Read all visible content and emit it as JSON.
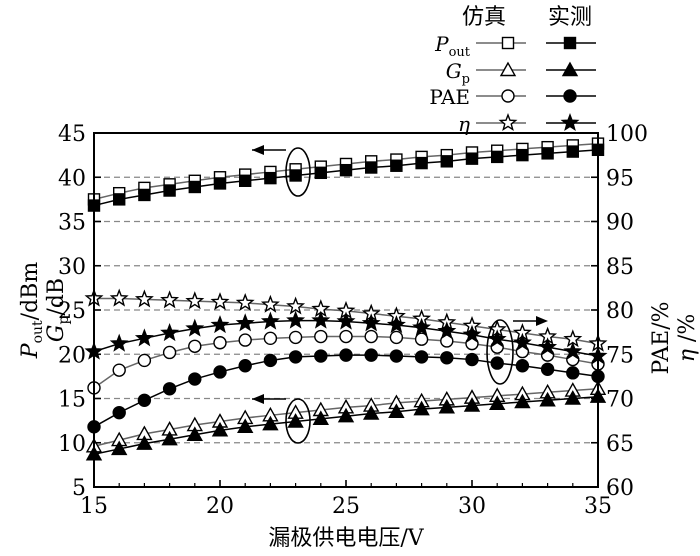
{
  "chart_data": {
    "type": "line",
    "x": [
      15,
      16,
      17,
      18,
      19,
      20,
      21,
      22,
      23,
      24,
      25,
      26,
      27,
      28,
      29,
      30,
      31,
      32,
      33,
      34,
      35
    ],
    "xlabel": "漏极供电电压/V",
    "xlim": [
      15,
      35
    ],
    "xticks": [
      "15",
      "20",
      "25",
      "30",
      "35"
    ],
    "ylabel_left": [
      "P_out/dBm",
      "G_p/dB"
    ],
    "ylim_left": [
      5,
      45
    ],
    "yticks_left": [
      "5",
      "10",
      "15",
      "20",
      "25",
      "30",
      "35",
      "40",
      "45"
    ],
    "ylabel_right": [
      "PAE/%",
      "η/%"
    ],
    "ylim_right": [
      60,
      100
    ],
    "yticks_right": [
      "60",
      "65",
      "70",
      "75",
      "80",
      "85",
      "90",
      "95",
      "100"
    ],
    "grid": "horizontal dashed",
    "legend_position": "top-right",
    "legend_headers": [
      "仿真",
      "实测"
    ],
    "legend_rows": [
      {
        "label": "P",
        "sub": "out",
        "italic": true
      },
      {
        "label": "G",
        "sub": "p",
        "italic": true
      },
      {
        "label": "PAE",
        "sub": "",
        "italic": false
      },
      {
        "label": "η",
        "sub": "",
        "italic": true
      }
    ],
    "series": [
      {
        "name": "P_out 仿真",
        "axis": "left",
        "marker": "square-open",
        "values": [
          37.5,
          38.2,
          38.8,
          39.2,
          39.6,
          40.0,
          40.3,
          40.6,
          40.9,
          41.2,
          41.5,
          41.8,
          42.0,
          42.3,
          42.5,
          42.8,
          43.0,
          43.2,
          43.4,
          43.6,
          43.8
        ]
      },
      {
        "name": "P_out 实测",
        "axis": "left",
        "marker": "square-filled",
        "values": [
          36.8,
          37.5,
          38.0,
          38.5,
          38.9,
          39.3,
          39.6,
          39.9,
          40.2,
          40.5,
          40.8,
          41.1,
          41.3,
          41.6,
          41.8,
          42.1,
          42.3,
          42.5,
          42.7,
          42.9,
          43.1
        ]
      },
      {
        "name": "G_p 仿真",
        "axis": "left",
        "marker": "triangle-open",
        "values": [
          9.6,
          10.3,
          11.0,
          11.5,
          12.0,
          12.4,
          12.8,
          13.1,
          13.4,
          13.7,
          14.0,
          14.2,
          14.5,
          14.7,
          14.9,
          15.1,
          15.3,
          15.5,
          15.7,
          15.9,
          16.1
        ]
      },
      {
        "name": "G_p 实测",
        "axis": "left",
        "marker": "triangle-filled",
        "values": [
          8.7,
          9.3,
          9.9,
          10.4,
          10.9,
          11.4,
          11.8,
          12.1,
          12.4,
          12.7,
          13.0,
          13.3,
          13.5,
          13.8,
          14.0,
          14.2,
          14.4,
          14.6,
          14.8,
          15.0,
          15.2
        ]
      },
      {
        "name": "PAE 仿真",
        "axis": "right",
        "marker": "circle-open",
        "values": [
          71.2,
          73.2,
          74.3,
          75.2,
          75.9,
          76.3,
          76.6,
          76.8,
          76.9,
          77.0,
          77.0,
          77.0,
          76.9,
          76.7,
          76.5,
          76.2,
          75.8,
          75.3,
          74.9,
          74.4,
          73.9
        ]
      },
      {
        "name": "PAE 实测",
        "axis": "right",
        "marker": "circle-filled",
        "values": [
          66.8,
          68.4,
          69.8,
          71.1,
          72.2,
          73.0,
          73.7,
          74.3,
          74.7,
          74.8,
          74.9,
          74.9,
          74.8,
          74.7,
          74.6,
          74.4,
          74.0,
          73.7,
          73.3,
          72.9,
          72.5
        ]
      },
      {
        "name": "η 仿真",
        "axis": "right",
        "marker": "star-open",
        "values": [
          81.3,
          81.3,
          81.2,
          81.1,
          81.0,
          80.9,
          80.8,
          80.6,
          80.4,
          80.1,
          79.9,
          79.6,
          79.3,
          79.0,
          78.6,
          78.2,
          77.8,
          77.4,
          77.0,
          76.7,
          76.2
        ]
      },
      {
        "name": "η 实测",
        "axis": "right",
        "marker": "star-filled",
        "values": [
          75.3,
          76.2,
          76.8,
          77.4,
          77.9,
          78.3,
          78.5,
          78.7,
          78.8,
          78.8,
          78.7,
          78.5,
          78.3,
          78.0,
          77.6,
          77.2,
          76.7,
          76.3,
          75.8,
          75.3,
          74.8
        ]
      }
    ]
  }
}
